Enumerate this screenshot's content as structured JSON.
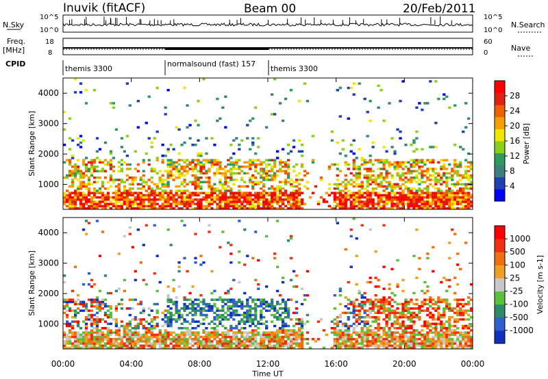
{
  "header": {
    "station": "Inuvik (fitACF)",
    "beam": "Beam 00",
    "date": "20/Feb/2011"
  },
  "panels": {
    "nsky_label": "N.Sky",
    "nsky_ticks": [
      "10^5",
      "10^0"
    ],
    "nsearch_label": "N.Search",
    "nsearch_ticks": [
      "10^5",
      "10^0"
    ],
    "freq_label_1": "Freq.",
    "freq_label_2": "[MHz]",
    "freq_ticks": [
      "18",
      "8"
    ],
    "nave_label": "Nave",
    "nave_ticks": [
      "60",
      "0"
    ],
    "cpid_label": "CPID",
    "cpid_segments": [
      "themis 3300",
      "normalsound (fast) 157",
      "themis 3300"
    ]
  },
  "chart_data": [
    {
      "type": "heatmap",
      "ylabel": "Slant Range [km]",
      "yticks": [
        "1000",
        "2000",
        "3000",
        "4000"
      ],
      "ylim": [
        180,
        4500
      ],
      "xlim": [
        "00:00",
        "24:00"
      ],
      "colorbar_label": "Power [dB]",
      "colorbar_ticks": [
        "28",
        "24",
        "20",
        "16",
        "12",
        "8",
        "4"
      ],
      "colorbar_colors": [
        "#0000ff",
        "#1f3fb5",
        "#3d7f7f",
        "#2e9a5e",
        "#8bd01a",
        "#f0e600",
        "#f5a000",
        "#f06000",
        "#e02010",
        "#ff0000"
      ]
    },
    {
      "type": "heatmap",
      "ylabel": "Slant Range [km]",
      "yticks": [
        "1000",
        "2000",
        "3000",
        "4000"
      ],
      "ylim": [
        180,
        4500
      ],
      "xlim": [
        "00:00",
        "24:00"
      ],
      "xlabel": "Time UT",
      "xticks": [
        "00:00",
        "04:00",
        "08:00",
        "12:00",
        "16:00",
        "20:00",
        "00:00"
      ],
      "colorbar_label": "Velocity [m s-1]",
      "colorbar_ticks": [
        "1000",
        "500",
        "100",
        "25",
        "-25",
        "-100",
        "-500",
        "-1000"
      ],
      "colorbar_colors": [
        "#1030c0",
        "#2f5fd0",
        "#2e8a6a",
        "#5bc03a",
        "#c8c8c8",
        "#f0a020",
        "#f07010",
        "#f03010",
        "#ff0000"
      ]
    }
  ]
}
